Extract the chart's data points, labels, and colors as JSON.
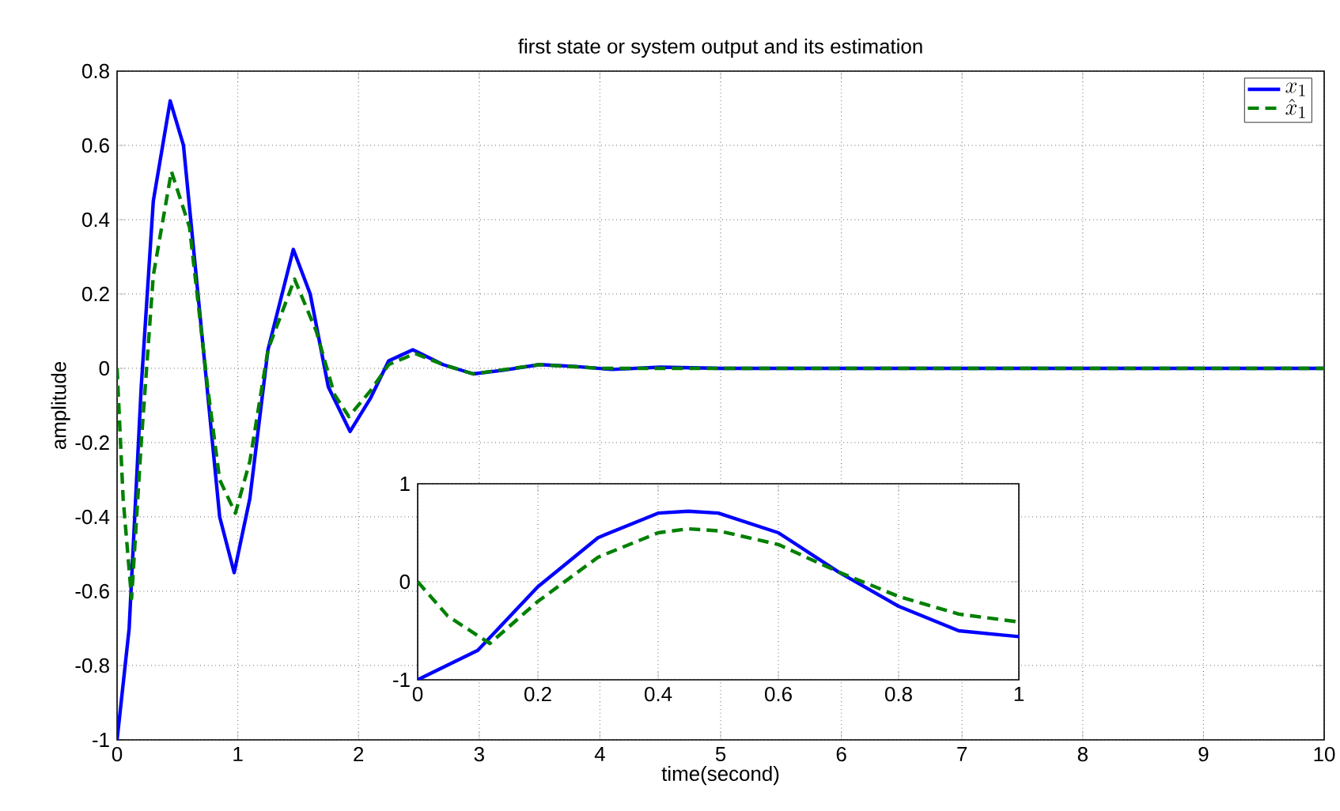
{
  "chart_data": [
    {
      "type": "line",
      "title": "first state or system output and its estimation",
      "xlabel": "time(second)",
      "ylabel": "amplitude",
      "xlim": [
        0,
        10
      ],
      "ylim": [
        -1,
        0.8
      ],
      "xticks": [
        0,
        1,
        2,
        3,
        4,
        5,
        6,
        7,
        8,
        9,
        10
      ],
      "yticks": [
        -1,
        -0.8,
        -0.6,
        -0.4,
        -0.2,
        0,
        0.2,
        0.4,
        0.6,
        0.8
      ],
      "grid": true,
      "legend": "top right",
      "series": [
        {
          "name": "x_1",
          "color": "#0000ff",
          "line_style": "solid",
          "x": [
            0,
            0.1,
            0.2,
            0.3,
            0.44,
            0.55,
            0.7,
            0.85,
            0.97,
            1.1,
            1.25,
            1.46,
            1.6,
            1.75,
            1.93,
            2.1,
            2.25,
            2.45,
            2.7,
            2.95,
            3.2,
            3.5,
            3.8,
            4.1,
            4.5,
            5,
            10
          ],
          "values": [
            -1,
            -0.7,
            -0.05,
            0.45,
            0.72,
            0.6,
            0.1,
            -0.4,
            -0.55,
            -0.35,
            0.05,
            0.32,
            0.2,
            -0.05,
            -0.17,
            -0.08,
            0.02,
            0.05,
            0.01,
            -0.015,
            -0.005,
            0.01,
            0.005,
            -0.003,
            0.003,
            0,
            0
          ]
        },
        {
          "name": "\\hat{x}_1",
          "color": "#008000",
          "line_style": "dashed",
          "x": [
            0,
            0.05,
            0.12,
            0.2,
            0.3,
            0.45,
            0.6,
            0.75,
            0.85,
            0.98,
            1.1,
            1.25,
            1.47,
            1.65,
            1.8,
            1.92,
            2.1,
            2.25,
            2.47,
            2.7,
            2.95,
            3.5,
            4,
            10
          ],
          "values": [
            0,
            -0.35,
            -0.62,
            -0.2,
            0.25,
            0.53,
            0.38,
            -0.05,
            -0.3,
            -0.39,
            -0.25,
            0.05,
            0.24,
            0.1,
            -0.07,
            -0.13,
            -0.06,
            0.01,
            0.04,
            0.01,
            -0.015,
            0.01,
            0,
            0
          ]
        }
      ]
    },
    {
      "type": "line",
      "xlim": [
        0,
        1
      ],
      "ylim": [
        -1,
        1
      ],
      "xticks": [
        0,
        0.2,
        0.4,
        0.6,
        0.8,
        1
      ],
      "yticks": [
        -1,
        0,
        1
      ],
      "grid": true,
      "series": [
        {
          "color": "#0000ff",
          "line_style": "solid",
          "x": [
            0,
            0.1,
            0.2,
            0.3,
            0.4,
            0.45,
            0.5,
            0.6,
            0.7,
            0.8,
            0.9,
            1.0
          ],
          "values": [
            -1,
            -0.7,
            -0.05,
            0.45,
            0.7,
            0.72,
            0.7,
            0.5,
            0.1,
            -0.25,
            -0.5,
            -0.56
          ]
        },
        {
          "color": "#008000",
          "line_style": "dashed",
          "x": [
            0,
            0.05,
            0.12,
            0.2,
            0.3,
            0.4,
            0.45,
            0.5,
            0.6,
            0.7,
            0.8,
            0.9,
            1.0
          ],
          "values": [
            0,
            -0.35,
            -0.63,
            -0.2,
            0.25,
            0.5,
            0.54,
            0.52,
            0.38,
            0.1,
            -0.15,
            -0.33,
            -0.41
          ]
        }
      ]
    }
  ]
}
